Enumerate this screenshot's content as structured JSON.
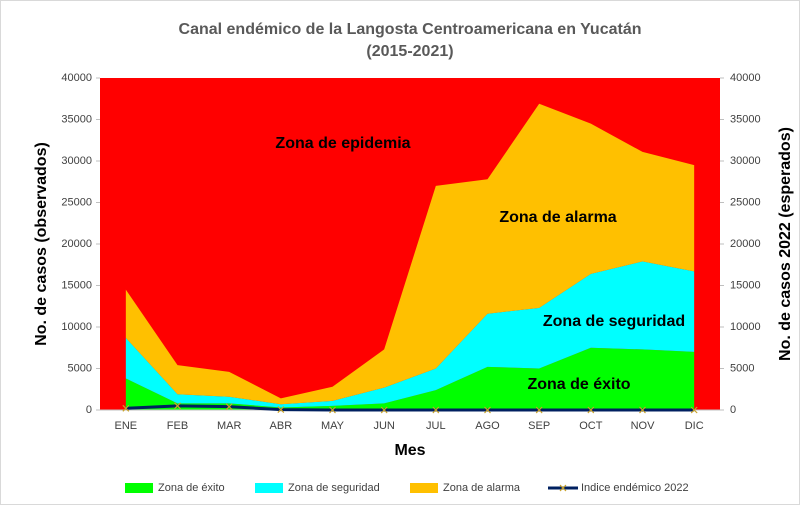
{
  "chart_data": {
    "type": "stacked_area",
    "title": "Canal endémico de la Langosta Centroamericana en Yucatán",
    "subtitle": "(2015-2021)",
    "x_label": "Mes",
    "y_label": "No. de casos (observados)",
    "y2_label": "No. de casos 2022 (esperados)",
    "categories": [
      "ENE",
      "FEB",
      "MAR",
      "ABR",
      "MAY",
      "JUN",
      "JUL",
      "AGO",
      "SEP",
      "OCT",
      "NOV",
      "DIC"
    ],
    "series": [
      {
        "name": "Zona de éxito",
        "color": "#00ff00",
        "values": [
          3800,
          800,
          800,
          300,
          500,
          800,
          2400,
          5200,
          5000,
          7500,
          7300,
          7000
        ]
      },
      {
        "name": "Zona de seguridad",
        "color": "#00ffff",
        "values": [
          4900,
          1100,
          800,
          400,
          600,
          1900,
          2600,
          6400,
          7300,
          8900,
          10600,
          9700
        ]
      },
      {
        "name": "Zona de alarma",
        "color": "#ffc000",
        "values": [
          5800,
          3500,
          3000,
          700,
          1700,
          4600,
          22000,
          16200,
          24600,
          18100,
          13200,
          12800
        ]
      },
      {
        "name": "Indice endémico 2022",
        "color": "#002060",
        "axis": "y2",
        "type": "line",
        "values": [
          200,
          500,
          400,
          50,
          0,
          0,
          0,
          0,
          0,
          0,
          0,
          0
        ]
      }
    ],
    "plot_background": "#ff0000",
    "annotations": [
      "Zona de epidemia",
      "Zona de alarma",
      "Zona de seguridad",
      "Zona de éxito"
    ],
    "ylim": [
      0,
      40000
    ],
    "yticks": [
      0,
      5000,
      10000,
      15000,
      20000,
      25000,
      30000,
      35000,
      40000
    ],
    "y2lim": [
      0,
      40000
    ],
    "y2ticks": [
      0,
      5000,
      10000,
      15000,
      20000,
      25000,
      30000,
      35000,
      40000
    ],
    "legend": "bottom"
  }
}
